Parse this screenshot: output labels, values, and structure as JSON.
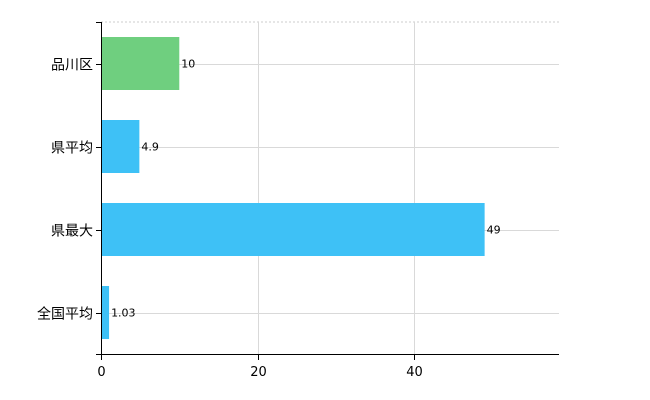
{
  "chart_data": {
    "type": "bar",
    "orientation": "horizontal",
    "title": "",
    "xlabel": "",
    "ylabel": "",
    "categories": [
      "品川区",
      "県平均",
      "県最大",
      "全国平均"
    ],
    "values": [
      10,
      4.9,
      49,
      1.03
    ],
    "data_labels": [
      "10",
      "4.9",
      "49",
      "1.03"
    ],
    "bar_colors": [
      "#6fcf7f",
      "#3ec1f6",
      "#3ec1f6",
      "#3ec1f6"
    ],
    "xlim": [
      0,
      58.5
    ],
    "x_ticks": [
      0,
      20,
      40
    ],
    "x_tick_labels": [
      "0",
      "20",
      "40"
    ],
    "grid": true,
    "legend": "none"
  }
}
